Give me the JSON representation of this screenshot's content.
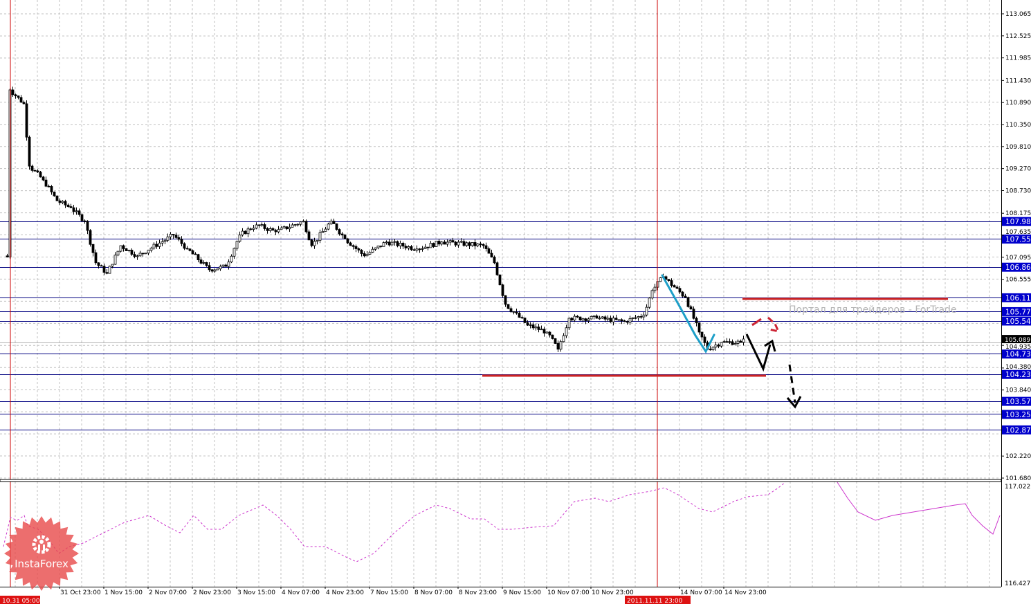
{
  "chart_data": {
    "type": "candlestick",
    "timeframe_bars": "hourly",
    "price_axis": {
      "range": [
        101.68,
        113.065
      ],
      "tick_labels": [
        "113.065",
        "112.525",
        "111.985",
        "111.430",
        "110.890",
        "110.350",
        "109.810",
        "109.270",
        "108.730",
        "108.175",
        "107.635",
        "107.095",
        "106.555",
        "104.935",
        "104.380",
        "103.840",
        "102.220",
        "101.680"
      ]
    },
    "time_axis": {
      "tick_labels": [
        "31 Oct 23:00",
        "1 Nov 15:00",
        "2 Nov 07:00",
        "2 Nov 23:00",
        "3 Nov 15:00",
        "4 Nov 07:00",
        "4 Nov 23:00",
        "7 Nov 15:00",
        "8 Nov 07:00",
        "8 Nov 23:00",
        "9 Nov 15:00",
        "10 Nov 07:00",
        "10 Nov 23:00",
        "14 Nov 07:00",
        "14 Nov 23:00"
      ],
      "highlight_labels": [
        "10.31 05:00",
        "2011.11.11 23:00"
      ]
    },
    "grid": true,
    "price_path": [
      [
        "31 Oct 03:00",
        107.13
      ],
      [
        "31 Oct 04:00",
        107.1
      ],
      [
        "31 Oct 05:00",
        111.2
      ],
      [
        "31 Oct 10:00",
        110.86
      ],
      [
        "31 Oct 12:00",
        109.33
      ],
      [
        "31 Oct 17:00",
        108.99
      ],
      [
        "31 Oct 22:00",
        108.48
      ],
      [
        "1 Nov 03:00",
        108.31
      ],
      [
        "1 Nov 08:00",
        107.98
      ],
      [
        "1 Nov 12:00",
        106.96
      ],
      [
        "1 Nov 16:00",
        106.7
      ],
      [
        "1 Nov 21:00",
        107.38
      ],
      [
        "2 Nov 03:00",
        107.13
      ],
      [
        "2 Nov 16:00",
        107.64
      ],
      [
        "2 Nov 21:00",
        107.3
      ],
      [
        "3 Nov 05:00",
        106.79
      ],
      [
        "3 Nov 11:00",
        106.87
      ],
      [
        "3 Nov 16:00",
        107.64
      ],
      [
        "3 Nov 22:00",
        107.89
      ],
      [
        "4 Nov 05:00",
        107.72
      ],
      [
        "4 Nov 15:00",
        107.98
      ],
      [
        "4 Nov 18:00",
        107.38
      ],
      [
        "7 Nov 01:00",
        107.98
      ],
      [
        "7 Nov 06:00",
        107.55
      ],
      [
        "7 Nov 13:00",
        107.13
      ],
      [
        "7 Nov 21:00",
        107.47
      ],
      [
        "8 Nov 08:00",
        107.3
      ],
      [
        "8 Nov 17:00",
        107.47
      ],
      [
        "9 Nov 08:00",
        107.38
      ],
      [
        "9 Nov 12:00",
        106.96
      ],
      [
        "9 Nov 16:00",
        105.94
      ],
      [
        "10 Nov 00:00",
        105.43
      ],
      [
        "10 Nov 07:00",
        105.26
      ],
      [
        "10 Nov 11:00",
        104.84
      ],
      [
        "10 Nov 15:00",
        105.6
      ],
      [
        "11 Nov 01:00",
        105.6
      ],
      [
        "11 Nov 11:00",
        105.52
      ],
      [
        "11 Nov 18:00",
        105.68
      ],
      [
        "11 Nov 21:00",
        106.28
      ],
      [
        "14 Nov 01:00",
        106.62
      ],
      [
        "14 Nov 09:00",
        106.11
      ],
      [
        "14 Nov 14:00",
        105.26
      ],
      [
        "14 Nov 17:00",
        104.84
      ],
      [
        "14 Nov 22:00",
        105.01
      ],
      [
        "15 Nov 05:00",
        105.01
      ],
      [
        "15 Nov 06:00",
        105.09
      ]
    ],
    "current_price": "105.089",
    "horizontal_levels": [
      "107.98",
      "107.55",
      "106.86",
      "106.11",
      "105.77",
      "105.54",
      "104.73",
      "104.23",
      "103.57",
      "103.25",
      "102.87"
    ],
    "red_levels": [
      106.11,
      104.23
    ],
    "vertical_markers": [
      "10.31 05:00",
      "2011.11.11 23:00"
    ],
    "indicator_pane": {
      "range": [
        116.427,
        117.022
      ],
      "tick_labels": [
        "117.022",
        "116.427"
      ]
    },
    "colors": {
      "level_line": "#000080",
      "level_label_bg": "#0000cc",
      "red_marker": "#cc0000",
      "trend_cyan": "#1e9fc8",
      "indicator": "#cc33cc",
      "grid": "#c0c0c0"
    }
  },
  "watermark": "Портал для трейдеров - ForTrade",
  "logo": {
    "text": "InstaForex",
    "icon": "gear-person-icon"
  }
}
